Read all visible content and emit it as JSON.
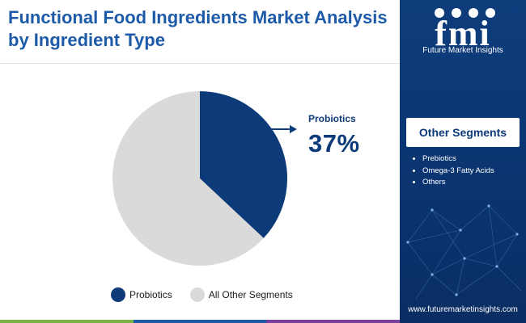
{
  "title": "Functional Food Ingredients Market Analysis by Ingredient Type",
  "brand": {
    "logo_text": "fmi",
    "name": "Future Market Insights",
    "url": "www.futuremarketinsights.com"
  },
  "callout": {
    "label": "Probiotics",
    "value": "37%"
  },
  "sidebar": {
    "heading": "Other Segments",
    "items": [
      "Prebiotics",
      "Omega-3 Fatty Acids",
      "Others"
    ]
  },
  "colors": {
    "accent": "#0d3b7a",
    "title": "#1d5aa7",
    "other": "#dadada",
    "sidebar_bg": "#0e3d7c",
    "bar": [
      "#7ab342",
      "#1d5aa7",
      "#7b3fa0"
    ]
  },
  "chart_data": {
    "type": "pie",
    "slices": [
      {
        "label": "Probiotics",
        "value": 37,
        "color": "#0d3b7a"
      },
      {
        "label": "All Other Segments",
        "value": 63,
        "color": "#dadada"
      }
    ],
    "legend_position": "bottom"
  }
}
